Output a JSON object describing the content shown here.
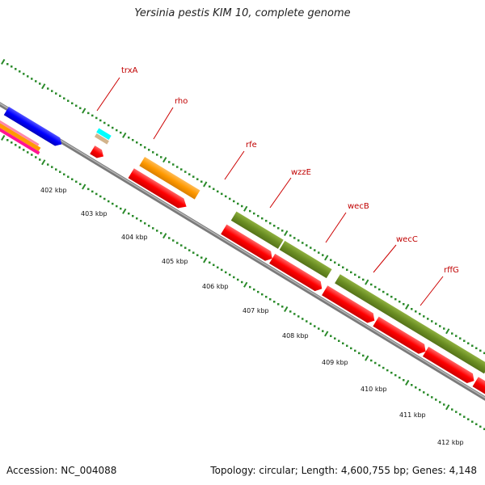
{
  "title": "Yersinia pestis KIM 10, complete genome",
  "footer": {
    "accession_label": "Accession: NC_004088",
    "summary": "Topology: circular; Length: 4,600,755 bp; Genes: 4,148"
  },
  "colors": {
    "backbone": "#8c8c8c",
    "ticks": "#2a8a2a",
    "label_text": "#c00000",
    "leader_line": "#cc0000",
    "orange": "#ff9900",
    "olive": "#6b8e23",
    "red": "#ff0000",
    "blue": "#0000ff",
    "cyan": "#00ffff",
    "tan": "#d2b48c",
    "magenta": "#ff1493"
  },
  "kbp_ticks": [
    "402 kbp",
    "403 kbp",
    "404 kbp",
    "405 kbp",
    "406 kbp",
    "407 kbp",
    "408 kbp",
    "409 kbp",
    "410 kbp",
    "411 kbp",
    "412 kbp"
  ],
  "gene_labels": [
    "trxA",
    "rho",
    "rfe",
    "wzzE",
    "wecB",
    "wecC",
    "rffG"
  ]
}
